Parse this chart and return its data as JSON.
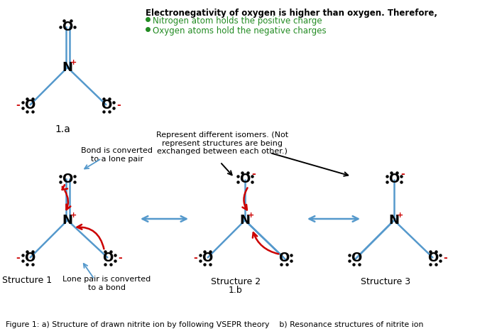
{
  "bg_color": "#ffffff",
  "bond_color": "#5599cc",
  "red_color": "#cc0000",
  "green_color": "#228B22",
  "black_color": "#000000",
  "header_text": "Electronegativity of oxygen is higher than oxygen. Therefore,",
  "bullet1": "Nitrogen atom holds the positive charge",
  "bullet2": "Oxygen atoms hold the negative charges",
  "figure_caption": "Figure 1: a) Structure of drawn nitrite ion by following VSEPR theory    b) Resonance structures of nitrite ion"
}
